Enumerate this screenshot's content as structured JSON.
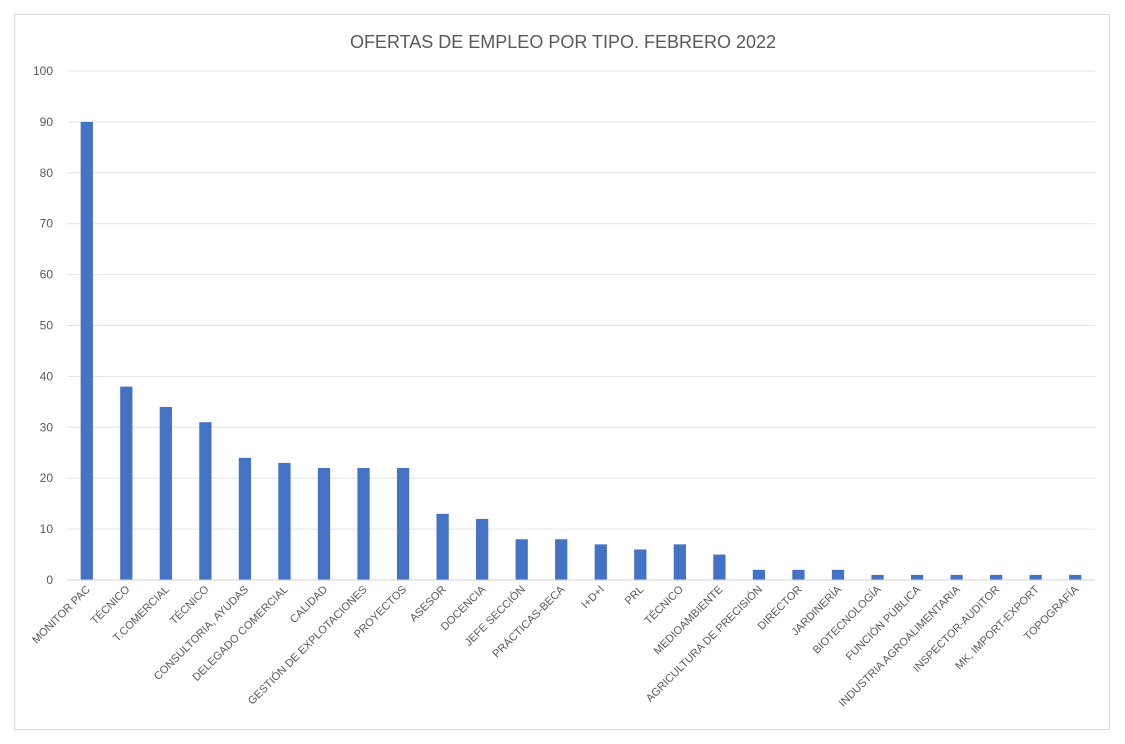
{
  "chart_data": {
    "type": "bar",
    "title": "OFERTAS DE EMPLEO POR TIPO. FEBRERO 2022",
    "xlabel": "",
    "ylabel": "",
    "ylim": [
      0,
      100
    ],
    "yticks": [
      0,
      10,
      20,
      30,
      40,
      50,
      60,
      70,
      80,
      90,
      100
    ],
    "grid": true,
    "legend": "none",
    "bar_color": "#4472c4",
    "categories": [
      "MONITOR PAC",
      "TÉCNICO",
      "T.COMERCIAL",
      "TÉCNICO",
      "CONSULTORIA, AYUDAS",
      "DELEGADO COMERCIAL",
      "CALIDAD",
      "GESTIÓN DE EXPLOTACIONES",
      "PROYECTOS",
      "ASESOR",
      "DOCENCIA",
      "JEFE SECCIÓN",
      "PRÁCTICAS-BECA",
      "I+D+I",
      "PRL",
      "TÉCNICO",
      "MEDIOAMBIENTE",
      "AGRICULTURA DE PRECISIÓN",
      "DIRECTOR",
      "JARDINERÍA",
      "BIOTECNOLOGÍA",
      "FUNCIÓN PÚBLICA",
      "INDUSTRIA AGROALIMENTARIA",
      "INSPECTOR-AUDITOR",
      "MK, IMPORT-EXPORT",
      "TOPOGRAFÍA"
    ],
    "values": [
      90,
      38,
      34,
      31,
      24,
      23,
      22,
      22,
      22,
      13,
      12,
      8,
      8,
      7,
      6,
      7,
      5,
      2,
      2,
      2,
      1,
      1,
      1,
      1,
      1,
      1
    ]
  }
}
